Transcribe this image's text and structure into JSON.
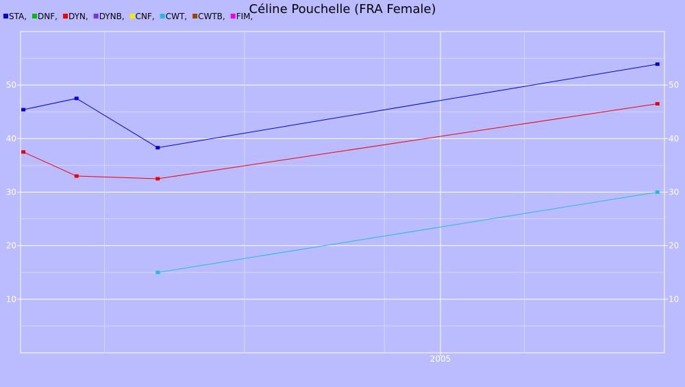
{
  "chart_data": {
    "type": "line",
    "title": "Céline Pouchelle (FRA Female)",
    "xlabel": "",
    "ylabel": "",
    "legend_position": "top-left",
    "legend": [
      {
        "name": "STA,",
        "color": "#0000dd"
      },
      {
        "name": "DNF,",
        "color": "#00bb00"
      },
      {
        "name": "DYN,",
        "color": "#ee0000"
      },
      {
        "name": "DYNB,",
        "color": "#7733ee"
      },
      {
        "name": "CNF,",
        "color": "#eeee00"
      },
      {
        "name": "CWT,",
        "color": "#22bbdd"
      },
      {
        "name": "CWTB,",
        "color": "#994400"
      },
      {
        "name": "FIM,",
        "color": "#ee00ee"
      }
    ],
    "xlim": [
      2002.0,
      2006.6
    ],
    "ylim": [
      0,
      60
    ],
    "y_ticks": [
      10,
      20,
      30,
      40,
      50
    ],
    "x_tick_labels": [
      {
        "value": 2005,
        "label": "2005"
      }
    ],
    "x_grid": [
      2002.6,
      2003.6,
      2004.6,
      2005.0,
      2005.6
    ],
    "y_minor_grid": [
      5,
      15,
      25,
      35,
      45,
      55
    ],
    "grid": true,
    "series": [
      {
        "name": "STA",
        "color": "#0000dd",
        "x": [
          2002.02,
          2002.4,
          2002.98,
          2006.55
        ],
        "y": [
          45.4,
          47.5,
          38.3,
          53.9
        ]
      },
      {
        "name": "DYN",
        "color": "#ee0000",
        "x": [
          2002.02,
          2002.4,
          2002.98,
          2006.55
        ],
        "y": [
          37.5,
          33.0,
          32.5,
          46.5
        ]
      },
      {
        "name": "CWT",
        "color": "#22bbdd",
        "x": [
          2002.98,
          2006.55
        ],
        "y": [
          15.0,
          30.0
        ]
      }
    ]
  }
}
